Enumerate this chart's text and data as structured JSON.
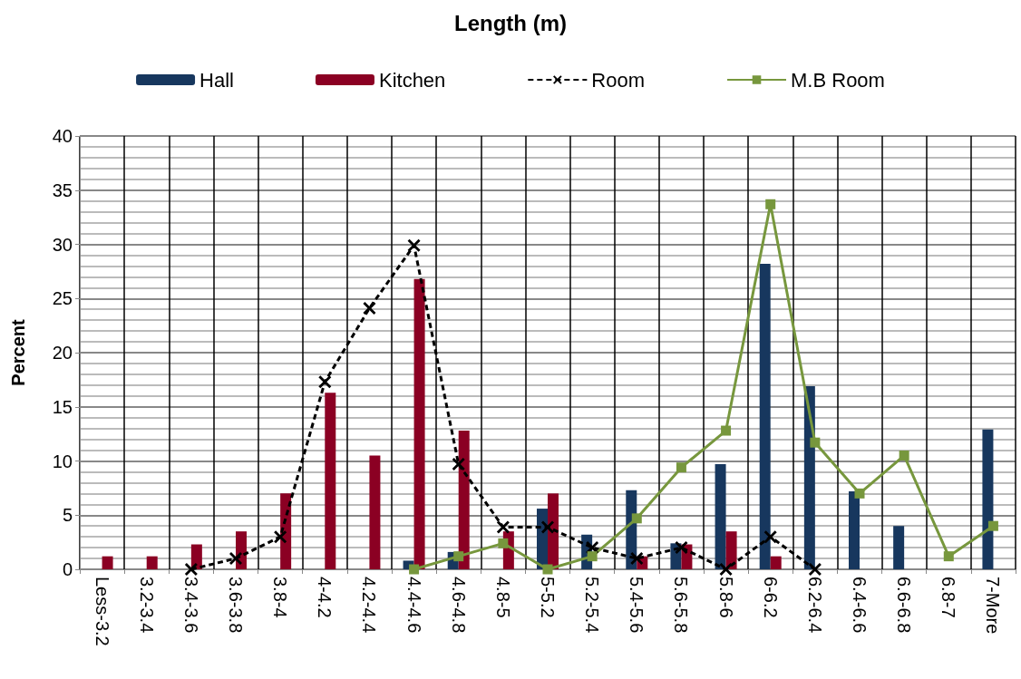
{
  "chart_data": {
    "type": "bar",
    "title": "Length (m)",
    "ylabel": "Percent",
    "categories": [
      "Less-3.2",
      "3.2-3.4",
      "3.4-3.6",
      "3.6-3.8",
      "3.8-4",
      "4-4.2",
      "4.2-4.4",
      "4.4-4.6",
      "4.6-4.8",
      "4.8-5",
      "5-5.2",
      "5.2-5.4",
      "5.4-5.6",
      "5.6-5.8",
      "5.8-6",
      "6-6.2",
      "6.2-6.4",
      "6.4-6.6",
      "6.6-6.8",
      "6.8-7",
      "7-More"
    ],
    "series": [
      {
        "name": "Hall",
        "color": "#17375e",
        "values": [
          0,
          0,
          0,
          0,
          0,
          0,
          0,
          0.8,
          1.6,
          0,
          5.6,
          3.2,
          7.3,
          2.4,
          9.7,
          28.2,
          16.9,
          7.2,
          4.0,
          0,
          12.9
        ]
      },
      {
        "name": "Kitchen",
        "color": "#8b0023",
        "values": [
          1.2,
          1.2,
          2.3,
          3.5,
          7.0,
          16.3,
          10.5,
          26.8,
          12.8,
          3.5,
          7.0,
          0,
          1.2,
          2.3,
          3.5,
          1.2,
          0,
          0,
          0,
          0,
          0
        ]
      },
      {
        "name": "Room",
        "type": "line",
        "color": "#000000",
        "marker": "cross",
        "line_style": "dashed",
        "values": [
          null,
          null,
          0,
          1.0,
          3.0,
          17.3,
          24.1,
          29.9,
          9.7,
          3.9,
          3.9,
          2.0,
          1.0,
          2.0,
          0,
          3.0,
          0,
          null,
          null,
          null,
          null
        ]
      },
      {
        "name": "M.B Room",
        "type": "line",
        "color": "#77973d",
        "marker": "square",
        "line_style": "solid",
        "values": [
          null,
          null,
          null,
          null,
          null,
          null,
          null,
          0,
          1.2,
          2.4,
          0,
          1.2,
          4.7,
          9.4,
          12.8,
          33.7,
          11.7,
          7.0,
          10.5,
          1.2,
          4.0
        ]
      }
    ],
    "ylim": [
      0,
      40
    ],
    "yticks": [
      0,
      5,
      10,
      15,
      20,
      25,
      30,
      35,
      40
    ],
    "grid": true,
    "legend": "top"
  }
}
